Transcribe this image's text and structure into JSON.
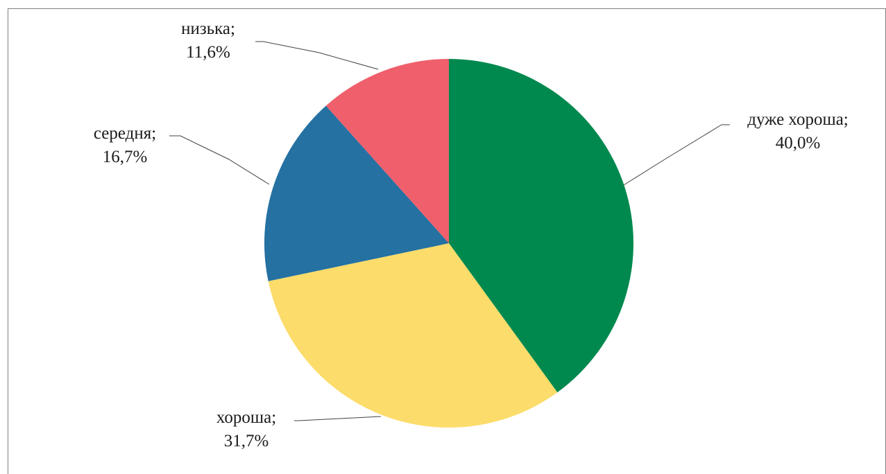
{
  "chart_data": {
    "type": "pie",
    "title": "",
    "slices": [
      {
        "label": "дуже хороша",
        "value": 40.0,
        "label_text": "дуже хороша;",
        "value_text": "40,0%",
        "color": "#00894f"
      },
      {
        "label": "хороша",
        "value": 31.7,
        "label_text": "хороша;",
        "value_text": "31,7%",
        "color": "#fcdc6a"
      },
      {
        "label": "середня",
        "value": 16.7,
        "label_text": "середня;",
        "value_text": "16,7%",
        "color": "#2471a2"
      },
      {
        "label": "низька",
        "value": 11.6,
        "label_text": "низька;",
        "value_text": "11,6%",
        "color": "#ef5f6c"
      }
    ],
    "start_angle": "12 o'clock",
    "direction": "clockwise",
    "legend": "none",
    "data_labels": "outside with leader lines"
  }
}
